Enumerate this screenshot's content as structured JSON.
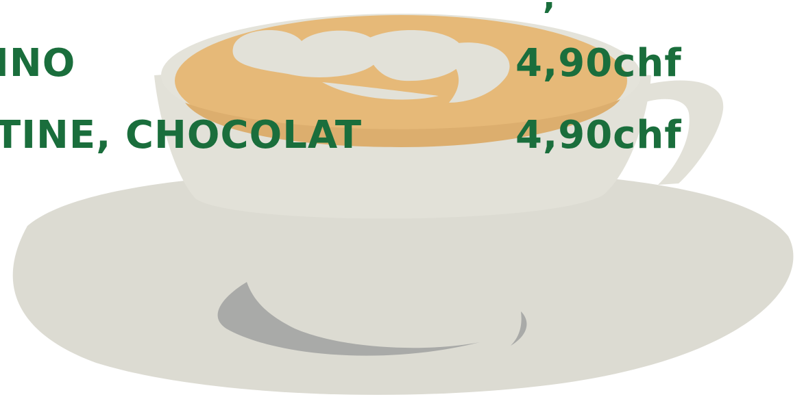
{
  "menu": {
    "items": [
      {
        "name": "INO",
        "price": "4,90chf"
      },
      {
        "name": "TINE, CHOCOLAT",
        "price": "4,90chf"
      }
    ],
    "top_fragment": ","
  },
  "colors": {
    "text_green": "#1a6e3c",
    "saucer": "#dcdbd2",
    "cup": "#e2e1d8",
    "latte_foam": "#e6b978",
    "shadow": "#a9aaa8"
  },
  "illustration": {
    "subject": "coffee-cup-with-latte-art-on-saucer"
  }
}
